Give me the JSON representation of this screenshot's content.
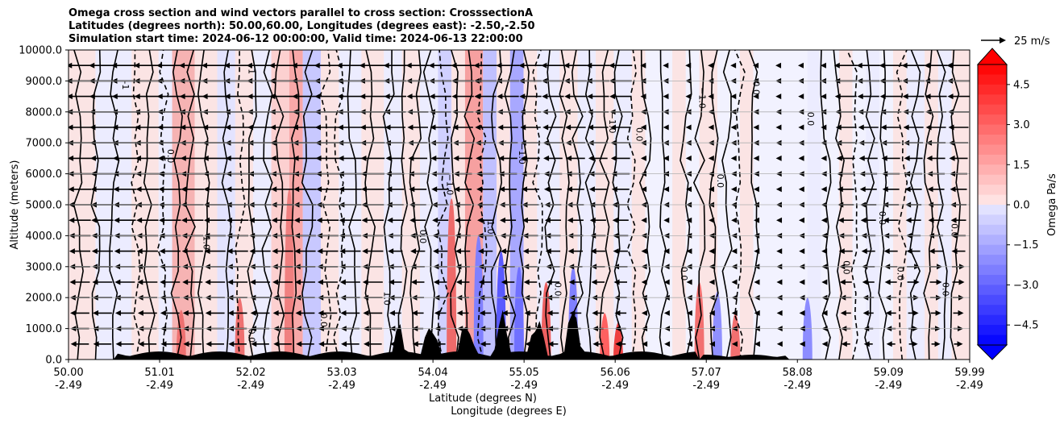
{
  "title_lines": [
    "Omega cross section and wind vectors parallel to cross section: CrosssectionA",
    "Latitudes (degrees north): 50.00,60.00, Longitudes (degrees east): -2.50,-2.50",
    "Simulation start time: 2024-06-12 00:00:00, Valid time: 2024-06-13 22:00:00"
  ],
  "chart_data": {
    "type": "heatmap",
    "title": "Omega cross section and wind vectors parallel to cross section: CrosssectionA",
    "ylabel": "Altitude (meters)",
    "xlabel_lines": [
      "Latitude (degrees N)",
      "Longitude (degrees E)"
    ],
    "x_range": [
      50.0,
      59.99
    ],
    "ylim": [
      0,
      10000
    ],
    "x_ticks": [
      {
        "lat": "50.00",
        "lon": "-2.49",
        "value": 50.0
      },
      {
        "lat": "51.01",
        "lon": "-2.49",
        "value": 51.01
      },
      {
        "lat": "52.02",
        "lon": "-2.49",
        "value": 52.02
      },
      {
        "lat": "53.03",
        "lon": "-2.49",
        "value": 53.03
      },
      {
        "lat": "54.04",
        "lon": "-2.49",
        "value": 54.04
      },
      {
        "lat": "55.05",
        "lon": "-2.49",
        "value": 55.05
      },
      {
        "lat": "56.06",
        "lon": "-2.49",
        "value": 56.06
      },
      {
        "lat": "57.07",
        "lon": "-2.49",
        "value": 57.07
      },
      {
        "lat": "58.08",
        "lon": "-2.49",
        "value": 58.08
      },
      {
        "lat": "59.09",
        "lon": "-2.49",
        "value": 59.09
      },
      {
        "lat": "59.99",
        "lon": "-2.49",
        "value": 59.99
      }
    ],
    "y_ticks": [
      {
        "label": "0.0",
        "value": 0
      },
      {
        "label": "1000.0",
        "value": 1000
      },
      {
        "label": "2000.0",
        "value": 2000
      },
      {
        "label": "3000.0",
        "value": 3000
      },
      {
        "label": "4000.0",
        "value": 4000
      },
      {
        "label": "5000.0",
        "value": 5000
      },
      {
        "label": "6000.0",
        "value": 6000
      },
      {
        "label": "7000.0",
        "value": 7000
      },
      {
        "label": "8000.0",
        "value": 8000
      },
      {
        "label": "9000.0",
        "value": 9000
      },
      {
        "label": "10000.0",
        "value": 10000
      }
    ],
    "grid": true,
    "colorbar": {
      "label": "Omega Pa/s",
      "vmin": -5.25,
      "vmax": 5.25,
      "extend": "both",
      "ticks": [
        {
          "label": "4.5",
          "value": 4.5
        },
        {
          "label": "3.0",
          "value": 3.0
        },
        {
          "label": "1.5",
          "value": 1.5
        },
        {
          "label": "0.0",
          "value": 0.0
        },
        {
          "label": "−1.5",
          "value": -1.5
        },
        {
          "label": "−3.0",
          "value": -3.0
        },
        {
          "label": "−4.5",
          "value": -4.5
        }
      ],
      "negative_color": "#0000ff",
      "positive_color": "#ff0000",
      "neutral_color": "#ffffff"
    },
    "quiver_key": {
      "label": "25 m/s",
      "speed": 25
    },
    "contour_labels": [
      "0.0",
      "1.0",
      "−1.0",
      "-1"
    ],
    "wind_rows_m": [
      500,
      1000,
      1500,
      2000,
      2500,
      3000,
      3500,
      4000,
      4500,
      5000,
      5500,
      6000,
      6500,
      7000,
      7500,
      8000,
      8500,
      9000,
      9500
    ]
  },
  "colors": {
    "frame": "#000000",
    "grid": "#b0b0b0",
    "terrain": "#000000",
    "contour": "#000000"
  }
}
